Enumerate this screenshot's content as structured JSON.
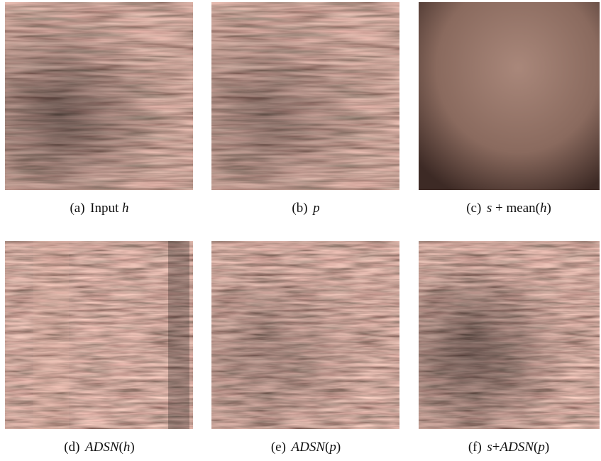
{
  "figures": [
    {
      "label": "(a)",
      "caption": [
        {
          "text": "Input "
        },
        {
          "math": "h"
        }
      ]
    },
    {
      "label": "(b)",
      "caption": [
        {
          "math": "p"
        }
      ]
    },
    {
      "label": "(c)",
      "caption": [
        {
          "math": "s"
        },
        {
          "text": " + mean("
        },
        {
          "math": "h"
        },
        {
          "text": ")"
        }
      ]
    },
    {
      "label": "(d)",
      "caption": [
        {
          "math": "ADSN"
        },
        {
          "text": "("
        },
        {
          "math": "h"
        },
        {
          "text": ")"
        }
      ]
    },
    {
      "label": "(e)",
      "caption": [
        {
          "math": "ADSN"
        },
        {
          "text": "("
        },
        {
          "math": "p"
        },
        {
          "text": ")"
        }
      ]
    },
    {
      "label": "(f)",
      "caption": [
        {
          "math": "s"
        },
        {
          "text": "+"
        },
        {
          "math": "ADSN"
        },
        {
          "text": "("
        },
        {
          "math": "p"
        },
        {
          "text": ")"
        }
      ]
    }
  ]
}
